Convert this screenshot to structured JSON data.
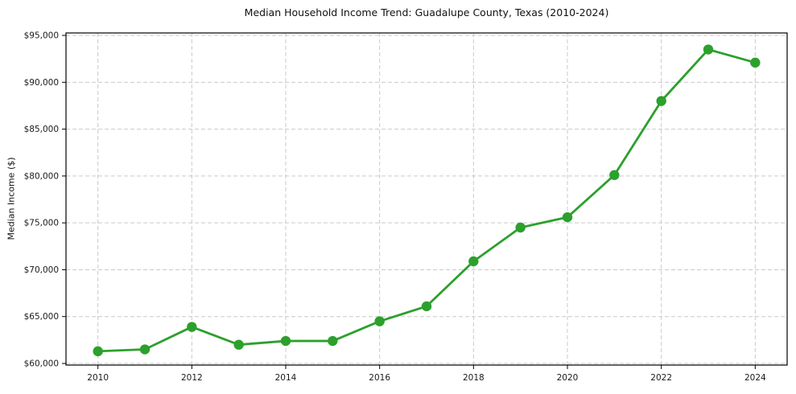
{
  "figure": {
    "background_color": "#ffffff",
    "text_color": "#111111"
  },
  "chart_data": {
    "type": "line",
    "title": "Median Household Income Trend: Guadalupe County, Texas (2010-2024)",
    "xlabel": "",
    "ylabel": "Median Income ($)",
    "x": [
      2010,
      2011,
      2012,
      2013,
      2014,
      2015,
      2016,
      2017,
      2018,
      2019,
      2020,
      2021,
      2022,
      2023,
      2024
    ],
    "values": [
      61300,
      61500,
      63900,
      62000,
      62400,
      62400,
      64500,
      66100,
      70900,
      74500,
      75600,
      80100,
      88000,
      93500,
      92100
    ],
    "x_ticks": [
      {
        "value": 2010,
        "label": "2010"
      },
      {
        "value": 2012,
        "label": "2012"
      },
      {
        "value": 2014,
        "label": "2014"
      },
      {
        "value": 2016,
        "label": "2016"
      },
      {
        "value": 2018,
        "label": "2018"
      },
      {
        "value": 2020,
        "label": "2020"
      },
      {
        "value": 2022,
        "label": "2022"
      },
      {
        "value": 2024,
        "label": "2024"
      }
    ],
    "y_ticks": [
      {
        "value": 60000,
        "label": "$60,000"
      },
      {
        "value": 65000,
        "label": "$65,000"
      },
      {
        "value": 70000,
        "label": "$70,000"
      },
      {
        "value": 75000,
        "label": "$75,000"
      },
      {
        "value": 80000,
        "label": "$80,000"
      },
      {
        "value": 85000,
        "label": "$85,000"
      },
      {
        "value": 90000,
        "label": "$90,000"
      },
      {
        "value": 95000,
        "label": "$95,000"
      }
    ],
    "xlim": [
      2009.32,
      2024.68
    ],
    "ylim": [
      59830,
      95260
    ],
    "grid": true,
    "grid_style": "dashed",
    "grid_color": "#c9c9c9",
    "line_color": "#2ca02c",
    "marker": "circle",
    "legend_position": "none"
  }
}
